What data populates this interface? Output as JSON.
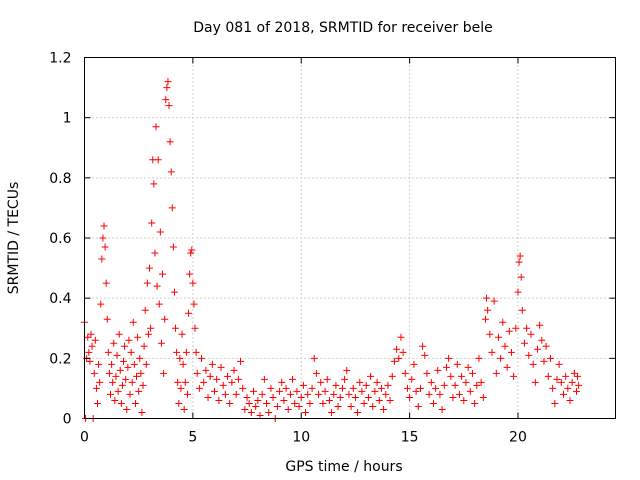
{
  "chart_data": {
    "type": "scatter",
    "title": "Day 081 of 2018, SRMTID for receiver bele",
    "xlabel": "GPS time / hours",
    "ylabel": "SRMTID / TECUs",
    "xlim": [
      0,
      24.5
    ],
    "ylim": [
      0,
      1.2
    ],
    "xticks": [
      0,
      5,
      10,
      15,
      20
    ],
    "xtick_labels": [
      "0",
      "5",
      "10",
      "15",
      "20"
    ],
    "yticks": [
      0,
      0.2,
      0.4,
      0.6,
      0.8,
      1.0,
      1.2
    ],
    "ytick_labels": [
      "0",
      "0.2",
      "0.4",
      "0.6",
      "0.8",
      "1",
      "1.2"
    ],
    "grid": true,
    "marker": "+",
    "color": "#ff0000",
    "series": [
      {
        "name": "SRMTID",
        "points": [
          [
            0.0,
            0.32
          ],
          [
            0.05,
            0.0
          ],
          [
            0.1,
            0.2
          ],
          [
            0.15,
            0.27
          ],
          [
            0.2,
            0.22
          ],
          [
            0.25,
            0.19
          ],
          [
            0.3,
            0.28
          ],
          [
            0.35,
            0.24
          ],
          [
            0.4,
            0.0
          ],
          [
            0.45,
            0.15
          ],
          [
            0.5,
            0.26
          ],
          [
            0.55,
            0.1
          ],
          [
            0.6,
            0.05
          ],
          [
            0.65,
            0.18
          ],
          [
            0.7,
            0.12
          ],
          [
            0.75,
            0.38
          ],
          [
            0.8,
            0.53
          ],
          [
            0.85,
            0.6
          ],
          [
            0.9,
            0.64
          ],
          [
            0.95,
            0.57
          ],
          [
            1.0,
            0.45
          ],
          [
            1.05,
            0.33
          ],
          [
            1.1,
            0.22
          ],
          [
            1.15,
            0.15
          ],
          [
            1.2,
            0.08
          ],
          [
            1.25,
            0.18
          ],
          [
            1.3,
            0.12
          ],
          [
            1.35,
            0.25
          ],
          [
            1.4,
            0.06
          ],
          [
            1.45,
            0.14
          ],
          [
            1.5,
            0.21
          ],
          [
            1.55,
            0.09
          ],
          [
            1.6,
            0.28
          ],
          [
            1.65,
            0.16
          ],
          [
            1.7,
            0.05
          ],
          [
            1.75,
            0.11
          ],
          [
            1.8,
            0.19
          ],
          [
            1.85,
            0.24
          ],
          [
            1.9,
            0.13
          ],
          [
            1.95,
            0.03
          ],
          [
            2.0,
            0.17
          ],
          [
            2.05,
            0.26
          ],
          [
            2.1,
            0.08
          ],
          [
            2.15,
            0.22
          ],
          [
            2.2,
            0.12
          ],
          [
            2.25,
            0.32
          ],
          [
            2.3,
            0.18
          ],
          [
            2.35,
            0.05
          ],
          [
            2.4,
            0.14
          ],
          [
            2.45,
            0.27
          ],
          [
            2.5,
            0.09
          ],
          [
            2.55,
            0.2
          ],
          [
            2.6,
            0.15
          ],
          [
            2.65,
            0.02
          ],
          [
            2.7,
            0.11
          ],
          [
            2.75,
            0.24
          ],
          [
            2.8,
            0.36
          ],
          [
            2.85,
            0.18
          ],
          [
            2.9,
            0.45
          ],
          [
            2.95,
            0.28
          ],
          [
            3.0,
            0.5
          ],
          [
            3.05,
            0.3
          ],
          [
            3.1,
            0.65
          ],
          [
            3.15,
            0.86
          ],
          [
            3.2,
            0.78
          ],
          [
            3.25,
            0.55
          ],
          [
            3.3,
            0.97
          ],
          [
            3.35,
            0.44
          ],
          [
            3.4,
            0.86
          ],
          [
            3.45,
            0.38
          ],
          [
            3.5,
            0.62
          ],
          [
            3.55,
            0.25
          ],
          [
            3.6,
            0.48
          ],
          [
            3.65,
            0.15
          ],
          [
            3.7,
            0.33
          ],
          [
            3.75,
            1.06
          ],
          [
            3.8,
            1.1
          ],
          [
            3.85,
            1.12
          ],
          [
            3.9,
            1.04
          ],
          [
            3.95,
            0.92
          ],
          [
            4.0,
            0.82
          ],
          [
            4.05,
            0.7
          ],
          [
            4.1,
            0.57
          ],
          [
            4.15,
            0.42
          ],
          [
            4.2,
            0.3
          ],
          [
            4.25,
            0.22
          ],
          [
            4.3,
            0.12
          ],
          [
            4.35,
            0.05
          ],
          [
            4.4,
            0.2
          ],
          [
            4.45,
            0.1
          ],
          [
            4.5,
            0.28
          ],
          [
            4.55,
            0.18
          ],
          [
            4.6,
            0.03
          ],
          [
            4.65,
            0.12
          ],
          [
            4.7,
            0.22
          ],
          [
            4.75,
            0.08
          ],
          [
            4.8,
            0.35
          ],
          [
            4.85,
            0.48
          ],
          [
            4.9,
            0.55
          ],
          [
            4.95,
            0.56
          ],
          [
            5.0,
            0.45
          ],
          [
            5.05,
            0.38
          ],
          [
            5.1,
            0.3
          ],
          [
            5.15,
            0.22
          ],
          [
            5.2,
            0.15
          ],
          [
            5.3,
            0.1
          ],
          [
            5.4,
            0.2
          ],
          [
            5.5,
            0.12
          ],
          [
            5.6,
            0.16
          ],
          [
            5.7,
            0.07
          ],
          [
            5.8,
            0.14
          ],
          [
            5.9,
            0.18
          ],
          [
            6.0,
            0.09
          ],
          [
            6.1,
            0.13
          ],
          [
            6.2,
            0.06
          ],
          [
            6.3,
            0.17
          ],
          [
            6.4,
            0.11
          ],
          [
            6.5,
            0.08
          ],
          [
            6.6,
            0.14
          ],
          [
            6.7,
            0.05
          ],
          [
            6.8,
            0.12
          ],
          [
            6.9,
            0.16
          ],
          [
            7.0,
            0.08
          ],
          [
            7.1,
            0.13
          ],
          [
            7.2,
            0.19
          ],
          [
            7.3,
            0.1
          ],
          [
            7.4,
            0.03
          ],
          [
            7.5,
            0.07
          ],
          [
            7.6,
            0.05
          ],
          [
            7.7,
            0.02
          ],
          [
            7.8,
            0.09
          ],
          [
            7.9,
            0.04
          ],
          [
            8.0,
            0.06
          ],
          [
            8.1,
            0.01
          ],
          [
            8.2,
            0.08
          ],
          [
            8.3,
            0.13
          ],
          [
            8.4,
            0.05
          ],
          [
            8.5,
            0.02
          ],
          [
            8.6,
            0.1
          ],
          [
            8.7,
            0.07
          ],
          [
            8.8,
            0.0
          ],
          [
            8.9,
            0.04
          ],
          [
            9.0,
            0.09
          ],
          [
            9.1,
            0.12
          ],
          [
            9.2,
            0.06
          ],
          [
            9.3,
            0.1
          ],
          [
            9.4,
            0.03
          ],
          [
            9.5,
            0.08
          ],
          [
            9.6,
            0.13
          ],
          [
            9.7,
            0.05
          ],
          [
            9.8,
            0.09
          ],
          [
            9.9,
            0.04
          ],
          [
            10.0,
            0.07
          ],
          [
            10.1,
            0.11
          ],
          [
            10.2,
            0.02
          ],
          [
            10.3,
            0.08
          ],
          [
            10.4,
            0.05
          ],
          [
            10.5,
            0.1
          ],
          [
            10.6,
            0.2
          ],
          [
            10.7,
            0.15
          ],
          [
            10.8,
            0.08
          ],
          [
            10.9,
            0.12
          ],
          [
            11.0,
            0.05
          ],
          [
            11.1,
            0.09
          ],
          [
            11.2,
            0.13
          ],
          [
            11.3,
            0.06
          ],
          [
            11.4,
            0.02
          ],
          [
            11.5,
            0.08
          ],
          [
            11.6,
            0.11
          ],
          [
            11.7,
            0.04
          ],
          [
            11.8,
            0.07
          ],
          [
            11.9,
            0.1
          ],
          [
            12.0,
            0.13
          ],
          [
            12.1,
            0.16
          ],
          [
            12.2,
            0.08
          ],
          [
            12.3,
            0.04
          ],
          [
            12.4,
            0.1
          ],
          [
            12.5,
            0.07
          ],
          [
            12.6,
            0.02
          ],
          [
            12.7,
            0.12
          ],
          [
            12.8,
            0.09
          ],
          [
            12.9,
            0.05
          ],
          [
            13.0,
            0.11
          ],
          [
            13.1,
            0.07
          ],
          [
            13.2,
            0.14
          ],
          [
            13.3,
            0.04
          ],
          [
            13.4,
            0.09
          ],
          [
            13.5,
            0.12
          ],
          [
            13.6,
            0.06
          ],
          [
            13.7,
            0.1
          ],
          [
            13.8,
            0.03
          ],
          [
            13.9,
            0.08
          ],
          [
            14.0,
            0.11
          ],
          [
            14.1,
            0.06
          ],
          [
            14.2,
            0.14
          ],
          [
            14.3,
            0.19
          ],
          [
            14.4,
            0.23
          ],
          [
            14.5,
            0.2
          ],
          [
            14.6,
            0.27
          ],
          [
            14.7,
            0.22
          ],
          [
            14.8,
            0.15
          ],
          [
            14.9,
            0.1
          ],
          [
            15.0,
            0.07
          ],
          [
            15.1,
            0.13
          ],
          [
            15.2,
            0.18
          ],
          [
            15.3,
            0.09
          ],
          [
            15.4,
            0.04
          ],
          [
            15.5,
            0.1
          ],
          [
            15.6,
            0.24
          ],
          [
            15.7,
            0.21
          ],
          [
            15.8,
            0.15
          ],
          [
            15.9,
            0.08
          ],
          [
            16.0,
            0.12
          ],
          [
            16.1,
            0.05
          ],
          [
            16.2,
            0.1
          ],
          [
            16.3,
            0.16
          ],
          [
            16.4,
            0.08
          ],
          [
            16.5,
            0.03
          ],
          [
            16.6,
            0.11
          ],
          [
            16.7,
            0.17
          ],
          [
            16.8,
            0.2
          ],
          [
            16.9,
            0.14
          ],
          [
            17.0,
            0.07
          ],
          [
            17.1,
            0.11
          ],
          [
            17.2,
            0.18
          ],
          [
            17.3,
            0.08
          ],
          [
            17.4,
            0.14
          ],
          [
            17.5,
            0.06
          ],
          [
            17.6,
            0.12
          ],
          [
            17.7,
            0.17
          ],
          [
            17.8,
            0.09
          ],
          [
            17.9,
            0.15
          ],
          [
            18.0,
            0.05
          ],
          [
            18.1,
            0.11
          ],
          [
            18.2,
            0.2
          ],
          [
            18.3,
            0.12
          ],
          [
            18.4,
            0.07
          ],
          [
            18.5,
            0.33
          ],
          [
            18.55,
            0.4
          ],
          [
            18.6,
            0.36
          ],
          [
            18.7,
            0.28
          ],
          [
            18.8,
            0.22
          ],
          [
            18.9,
            0.39
          ],
          [
            19.0,
            0.15
          ],
          [
            19.1,
            0.27
          ],
          [
            19.2,
            0.2
          ],
          [
            19.3,
            0.32
          ],
          [
            19.4,
            0.24
          ],
          [
            19.5,
            0.17
          ],
          [
            19.6,
            0.29
          ],
          [
            19.7,
            0.22
          ],
          [
            19.8,
            0.14
          ],
          [
            19.9,
            0.3
          ],
          [
            20.0,
            0.42
          ],
          [
            20.05,
            0.52
          ],
          [
            20.1,
            0.54
          ],
          [
            20.15,
            0.47
          ],
          [
            20.2,
            0.36
          ],
          [
            20.3,
            0.25
          ],
          [
            20.4,
            0.3
          ],
          [
            20.5,
            0.21
          ],
          [
            20.6,
            0.28
          ],
          [
            20.7,
            0.18
          ],
          [
            20.8,
            0.12
          ],
          [
            20.9,
            0.23
          ],
          [
            21.0,
            0.31
          ],
          [
            21.1,
            0.26
          ],
          [
            21.2,
            0.19
          ],
          [
            21.3,
            0.24
          ],
          [
            21.4,
            0.14
          ],
          [
            21.5,
            0.2
          ],
          [
            21.6,
            0.1
          ],
          [
            21.7,
            0.05
          ],
          [
            21.8,
            0.13
          ],
          [
            21.9,
            0.18
          ],
          [
            22.0,
            0.12
          ],
          [
            22.1,
            0.08
          ],
          [
            22.2,
            0.14
          ],
          [
            22.3,
            0.1
          ],
          [
            22.4,
            0.06
          ],
          [
            22.5,
            0.12
          ],
          [
            22.6,
            0.15
          ],
          [
            22.7,
            0.09
          ],
          [
            22.75,
            0.14
          ],
          [
            22.8,
            0.11
          ]
        ]
      }
    ]
  }
}
